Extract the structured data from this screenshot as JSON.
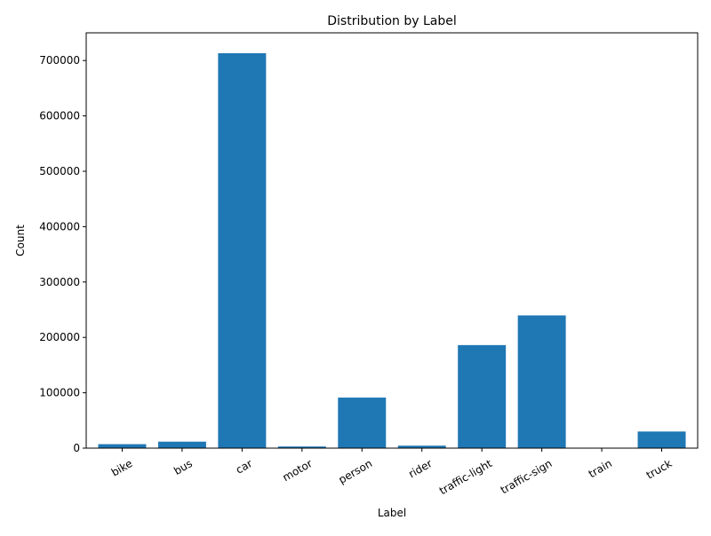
{
  "chart_data": {
    "type": "bar",
    "title": "Distribution by Label",
    "xlabel": "Label",
    "ylabel": "Count",
    "categories": [
      "bike",
      "bus",
      "car",
      "motor",
      "person",
      "rider",
      "traffic-light",
      "traffic-sign",
      "train",
      "truck"
    ],
    "values": [
      7200,
      11700,
      713200,
      3000,
      91300,
      4500,
      186100,
      239700,
      130,
      30000
    ],
    "ylim": [
      0,
      750000
    ],
    "yticks": [
      0,
      100000,
      200000,
      300000,
      400000,
      500000,
      600000,
      700000
    ],
    "ytick_labels": [
      "0",
      "100000",
      "200000",
      "300000",
      "400000",
      "500000",
      "600000",
      "700000"
    ],
    "bar_color": "#1f77b4",
    "grid": false,
    "legend": "none",
    "xtick_rotation": "30deg"
  }
}
